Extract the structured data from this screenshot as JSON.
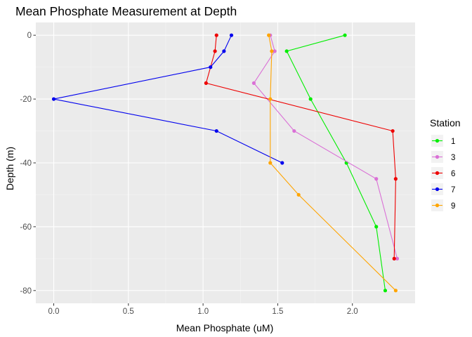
{
  "chart_data": {
    "type": "line",
    "title": "Mean Phosphate Measurement at Depth",
    "xlabel": "Mean Phosphate (uM)",
    "ylabel": "Depth (m)",
    "xlim": [
      -0.12,
      2.42
    ],
    "ylim": [
      -84,
      4
    ],
    "x_ticks": [
      0.0,
      0.5,
      1.0,
      1.5,
      2.0
    ],
    "x_tick_labels": [
      "0.0",
      "0.5",
      "1.0",
      "1.5",
      "2.0"
    ],
    "y_ticks": [
      0,
      -20,
      -40,
      -60,
      -80
    ],
    "y_tick_labels": [
      "0",
      "-20",
      "-40",
      "-60",
      "-80"
    ],
    "grid": true,
    "legend": {
      "title": "Station",
      "placement": "right"
    },
    "series": [
      {
        "name": "1",
        "color": "#00ee00",
        "points": [
          [
            1.95,
            0
          ],
          [
            1.56,
            -5
          ],
          [
            1.72,
            -20
          ],
          [
            1.96,
            -40
          ],
          [
            2.16,
            -60
          ],
          [
            2.22,
            -80
          ]
        ]
      },
      {
        "name": "3",
        "color": "#da70d6",
        "points": [
          [
            1.45,
            0
          ],
          [
            1.48,
            -5
          ],
          [
            1.34,
            -15
          ],
          [
            1.61,
            -30
          ],
          [
            2.16,
            -45
          ],
          [
            2.3,
            -70
          ]
        ]
      },
      {
        "name": "6",
        "color": "#ee0000",
        "points": [
          [
            1.09,
            0
          ],
          [
            1.08,
            -5
          ],
          [
            1.02,
            -15
          ],
          [
            2.27,
            -30
          ],
          [
            2.29,
            -45
          ],
          [
            2.28,
            -70
          ]
        ]
      },
      {
        "name": "7",
        "color": "#0000ee",
        "points": [
          [
            1.19,
            0
          ],
          [
            1.14,
            -5
          ],
          [
            1.05,
            -10
          ],
          [
            0.0,
            -20
          ],
          [
            1.09,
            -30
          ],
          [
            1.53,
            -40
          ]
        ]
      },
      {
        "name": "9",
        "color": "#ffa500",
        "points": [
          [
            1.44,
            0
          ],
          [
            1.46,
            -5
          ],
          [
            1.45,
            -20
          ],
          [
            1.45,
            -40
          ],
          [
            1.64,
            -50
          ],
          [
            2.29,
            -80
          ]
        ]
      }
    ]
  }
}
